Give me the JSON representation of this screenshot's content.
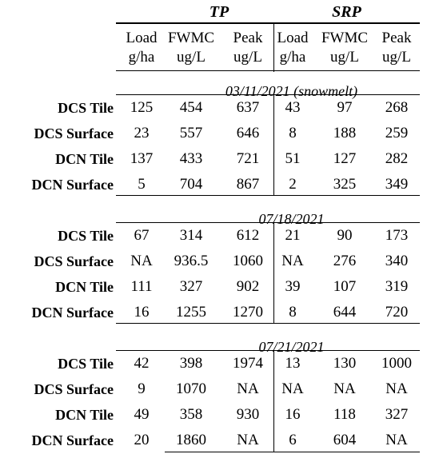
{
  "groups": {
    "tp": "TP",
    "srp": "SRP"
  },
  "columns": [
    {
      "l1": "Load",
      "l2": "g/ha"
    },
    {
      "l1": "FWMC",
      "l2": "ug/L"
    },
    {
      "l1": "Peak",
      "l2": "ug/L"
    },
    {
      "l1": "Load",
      "l2": "g/ha"
    },
    {
      "l1": "FWMC",
      "l2": "ug/L"
    },
    {
      "l1": "Peak",
      "l2": "ug/L"
    }
  ],
  "sections": [
    {
      "date": "03/11/2021 (snowmelt)",
      "rows": [
        {
          "label": "DCS Tile",
          "values": [
            "125",
            "454",
            "637",
            "43",
            "97",
            "268"
          ]
        },
        {
          "label": "DCS Surface",
          "values": [
            "23",
            "557",
            "646",
            "8",
            "188",
            "259"
          ]
        },
        {
          "label": "DCN Tile",
          "values": [
            "137",
            "433",
            "721",
            "51",
            "127",
            "282"
          ]
        },
        {
          "label": "DCN Surface",
          "values": [
            "5",
            "704",
            "867",
            "2",
            "325",
            "349"
          ]
        }
      ]
    },
    {
      "date": "07/18/2021",
      "rows": [
        {
          "label": "DCS Tile",
          "values": [
            "67",
            "314",
            "612",
            "21",
            "90",
            "173"
          ]
        },
        {
          "label": "DCS Surface",
          "values": [
            "NA",
            "936.5",
            "1060",
            "NA",
            "276",
            "340"
          ]
        },
        {
          "label": "DCN Tile",
          "values": [
            "111",
            "327",
            "902",
            "39",
            "107",
            "319"
          ]
        },
        {
          "label": "DCN Surface",
          "values": [
            "16",
            "1255",
            "1270",
            "8",
            "644",
            "720"
          ]
        }
      ]
    },
    {
      "date": "07/21/2021",
      "rows": [
        {
          "label": "DCS Tile",
          "values": [
            "42",
            "398",
            "1974",
            "13",
            "130",
            "1000"
          ]
        },
        {
          "label": "DCS Surface",
          "values": [
            "9",
            "1070",
            "NA",
            "NA",
            "NA",
            "NA"
          ]
        },
        {
          "label": "DCN Tile",
          "values": [
            "49",
            "358",
            "930",
            "16",
            "118",
            "327"
          ]
        },
        {
          "label": "DCN Surface",
          "values": [
            "20",
            "1860",
            "NA",
            "6",
            "604",
            "NA"
          ]
        }
      ]
    }
  ]
}
